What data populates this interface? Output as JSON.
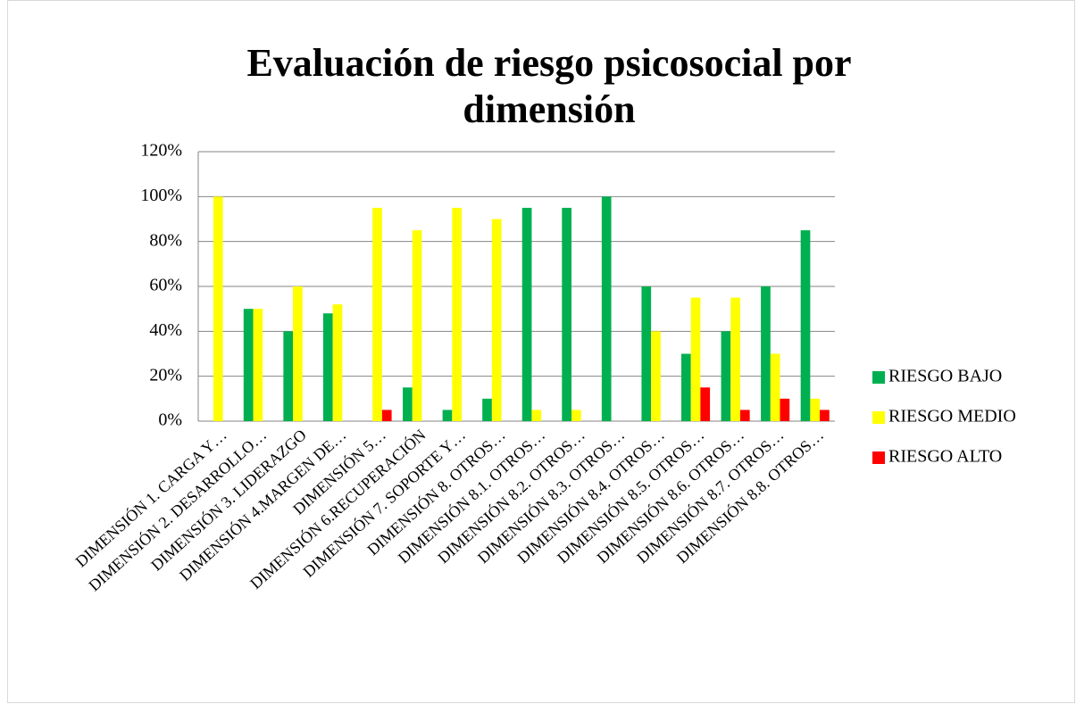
{
  "chart_data": {
    "type": "bar",
    "title": [
      "Evaluación de riesgo psicosocial por",
      "dimensión"
    ],
    "categories": [
      "DIMENSIÓN 1. CARGA Y…",
      "DIMENSIÓN 2. DESARROLLO…",
      "DIMENSIÓN 3. LIDERAZGO",
      "DIMENSIÓN 4.MARGEN DE…",
      "DIMENSIÓN 5…",
      "DIMENSIÓN 6.RECUPERACIÓN",
      "DIMENSIÓN 7. SOPORTE Y…",
      "DIMENSIÓN 8. OTROS…",
      "DIMENSIÓN 8.1. OTROS…",
      "DIMENSIÓN 8.2. OTROS…",
      "DIMENSIÓN 8.3. OTROS…",
      "DIMENSIÓN 8.4. OTROS…",
      "DIMENSIÓN 8.5. OTROS…",
      "DIMENSIÓN 8.6. OTROS…",
      "DIMENSIÓN 8.7. OTROS…",
      "DIMENSIÓN 8.8. OTROS…"
    ],
    "series": [
      {
        "name": "RIESGO BAJO",
        "color": "#00b050",
        "values": [
          0,
          50,
          40,
          48,
          0,
          15,
          5,
          10,
          95,
          95,
          100,
          60,
          30,
          40,
          60,
          85
        ]
      },
      {
        "name": "RIESGO MEDIO",
        "color": "#ffff00",
        "values": [
          100,
          50,
          60,
          52,
          95,
          85,
          95,
          90,
          5,
          5,
          0,
          40,
          55,
          55,
          30,
          10
        ]
      },
      {
        "name": "RIESGO ALTO",
        "color": "#ff0000",
        "values": [
          0,
          0,
          0,
          0,
          5,
          0,
          0,
          0,
          0,
          0,
          0,
          0,
          15,
          5,
          10,
          5
        ]
      }
    ],
    "ylim": [
      0,
      120
    ],
    "yticks": [
      {
        "value": 0,
        "label": "0%"
      },
      {
        "value": 20,
        "label": "20%"
      },
      {
        "value": 40,
        "label": "40%"
      },
      {
        "value": 60,
        "label": "60%"
      },
      {
        "value": 80,
        "label": "80%"
      },
      {
        "value": 100,
        "label": "100%"
      },
      {
        "value": 120,
        "label": "120%"
      }
    ],
    "grid": true,
    "legend": "right"
  }
}
